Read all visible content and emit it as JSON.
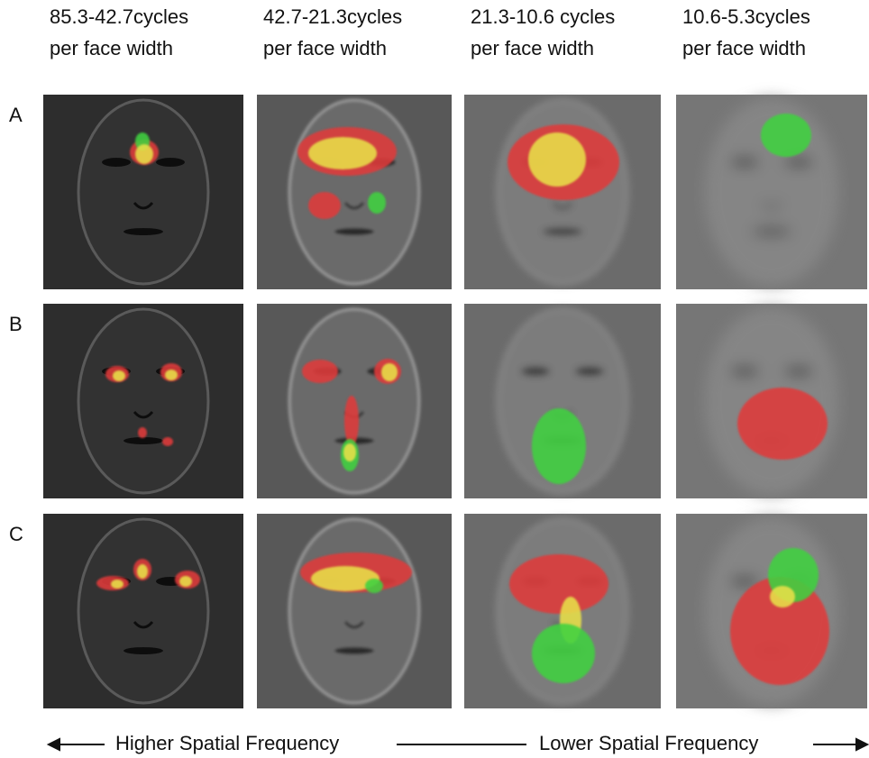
{
  "columns": [
    {
      "line1": "85.3-42.7cycles",
      "line2": "per face width"
    },
    {
      "line1": "42.7-21.3cycles",
      "line2": "per face width"
    },
    {
      "line1": "21.3-10.6 cycles",
      "line2": "per face width"
    },
    {
      "line1": "10.6-5.3cycles",
      "line2": "per face width"
    }
  ],
  "rows": [
    "A",
    "B",
    "C"
  ],
  "footer": {
    "left": "Higher Spatial Frequency",
    "right": "Lower Spatial Frequency"
  }
}
